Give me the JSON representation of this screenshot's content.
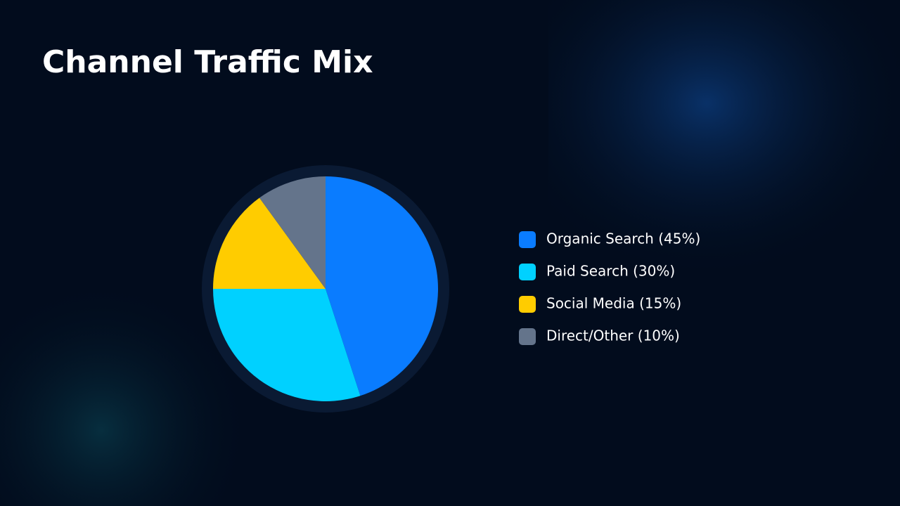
{
  "chart_data": {
    "type": "pie",
    "title": "Channel Traffic Mix",
    "categories": [
      "Organic Search (45%)",
      "Paid Search (30%)",
      "Social Media (15%)",
      "Direct/Other (10%)"
    ],
    "values": [
      45,
      30,
      15,
      10
    ],
    "colors": [
      "#0a7cff",
      "#00d1ff",
      "#ffcc00",
      "#64748b"
    ],
    "legend": "right"
  }
}
